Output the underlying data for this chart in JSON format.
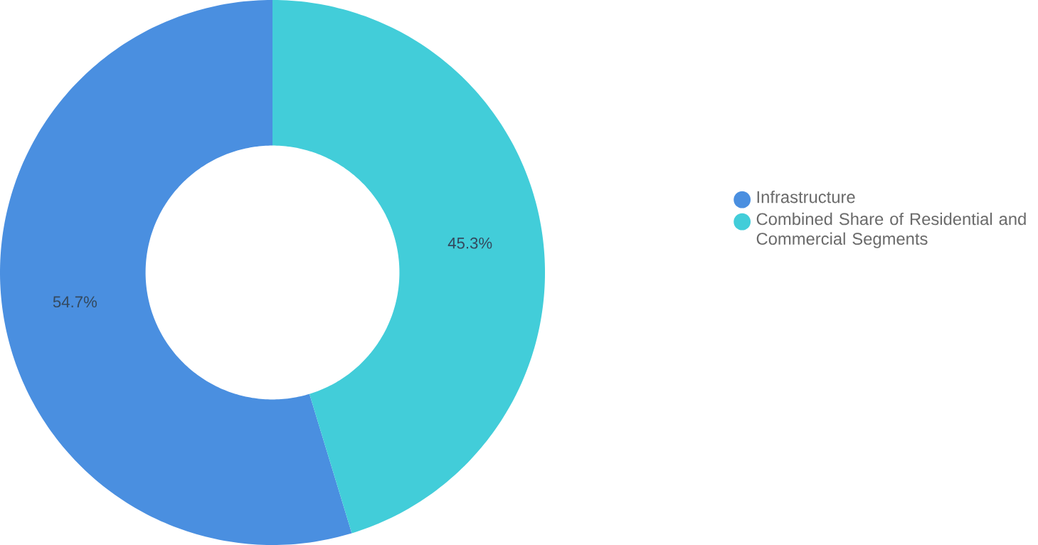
{
  "chart_data": {
    "type": "donut",
    "categories": [
      "Infrastructure",
      "Combined Share of Residential and Commercial Segments"
    ],
    "values": [
      54.7,
      45.3
    ],
    "colors": [
      "#4a8fe0",
      "#42cdd9"
    ],
    "value_labels": [
      "54.7%",
      "45.3%"
    ],
    "legend": "right"
  }
}
